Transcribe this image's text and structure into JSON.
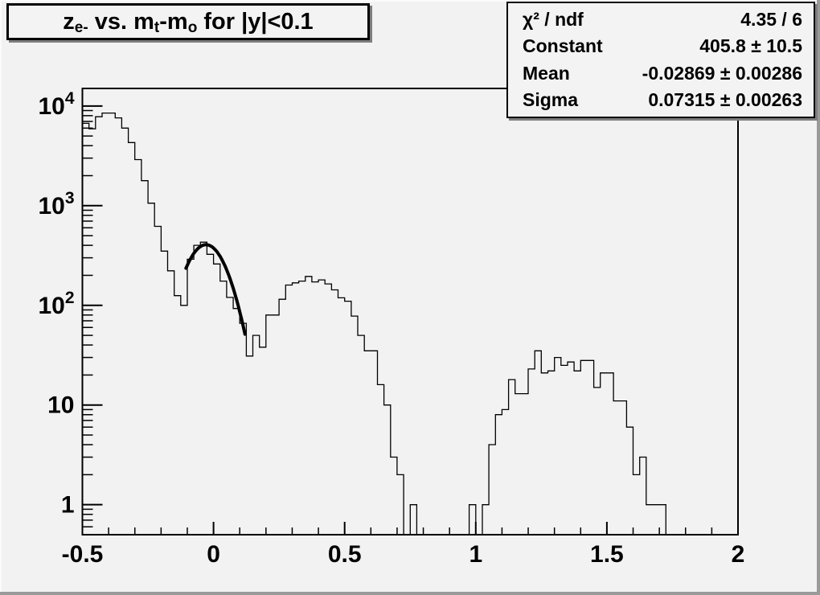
{
  "window": {
    "background": "#f2f2f2",
    "bevel_dark": "#9a9a9a",
    "bevel_light": "#fbfbfb",
    "line_color": "#000000",
    "box_background": "#f3f3f3"
  },
  "title_box": {
    "plain": "z_e- vs. m_t-m_o for |y|<0.1",
    "parts": [
      {
        "t": "z"
      },
      {
        "sub": "e-"
      },
      {
        "t": " vs. m"
      },
      {
        "sub": "t"
      },
      {
        "t": "-m"
      },
      {
        "sub": "o"
      },
      {
        "t": " for |y|<0.1"
      }
    ]
  },
  "stats_box": {
    "rows": [
      {
        "label": "χ² / ndf",
        "value": "4.35 / 6"
      },
      {
        "label": "Constant",
        "value": "405.8 ± 10.5"
      },
      {
        "label": "Mean",
        "value": "-0.02869 ± 0.00286"
      },
      {
        "label": "Sigma",
        "value": "0.07315 ± 0.00263"
      }
    ]
  },
  "chart_data": {
    "type": "bar",
    "style": "step-histogram",
    "title": "z_e- vs. m_t-m_o for |y|<0.1",
    "xlabel": "",
    "ylabel": "",
    "grid": false,
    "legend": false,
    "x_axis": {
      "min": -0.5,
      "max": 2.0,
      "major_ticks": [
        -0.5,
        0,
        0.5,
        1,
        1.5,
        2
      ],
      "labels": [
        "-0.5",
        "0",
        "0.5",
        "1",
        "1.5",
        "2"
      ],
      "minor_tick_step": 0.1
    },
    "y_axis": {
      "scale": "log",
      "min": 0.5,
      "max": 15000,
      "major_ticks": [
        1,
        10,
        100,
        1000,
        10000
      ],
      "labels": [
        {
          "base": "1",
          "exp": ""
        },
        {
          "base": "10",
          "exp": ""
        },
        {
          "base": "10",
          "exp": "2"
        },
        {
          "base": "10",
          "exp": "3"
        },
        {
          "base": "10",
          "exp": "4"
        }
      ]
    },
    "bins": {
      "start": -0.5,
      "width": 0.025,
      "values": [
        6700,
        5900,
        7800,
        8500,
        8500,
        7600,
        6000,
        4300,
        2900,
        1780,
        1060,
        620,
        350,
        222,
        125,
        100,
        290,
        400,
        430,
        325,
        260,
        175,
        120,
        93,
        66,
        31,
        50,
        38,
        80,
        80,
        115,
        160,
        168,
        175,
        195,
        172,
        180,
        164,
        143,
        119,
        110,
        78,
        50,
        35,
        35,
        16,
        10,
        3,
        2,
        0,
        1,
        0,
        0,
        0,
        0,
        0,
        0,
        0,
        0,
        1,
        0,
        1,
        4,
        8,
        9,
        18,
        13,
        13,
        23,
        35,
        21,
        22,
        30,
        25,
        27,
        22,
        28,
        28,
        15,
        21,
        21,
        11,
        11,
        6,
        2,
        3,
        1,
        1,
        1,
        0,
        0,
        0,
        0,
        0,
        0,
        0,
        0,
        0,
        0,
        0
      ]
    },
    "fit": {
      "type": "gaussian",
      "constant": 405.8,
      "mean": -0.02869,
      "sigma": 0.07315,
      "draw_range": [
        -0.105,
        0.12
      ]
    }
  }
}
